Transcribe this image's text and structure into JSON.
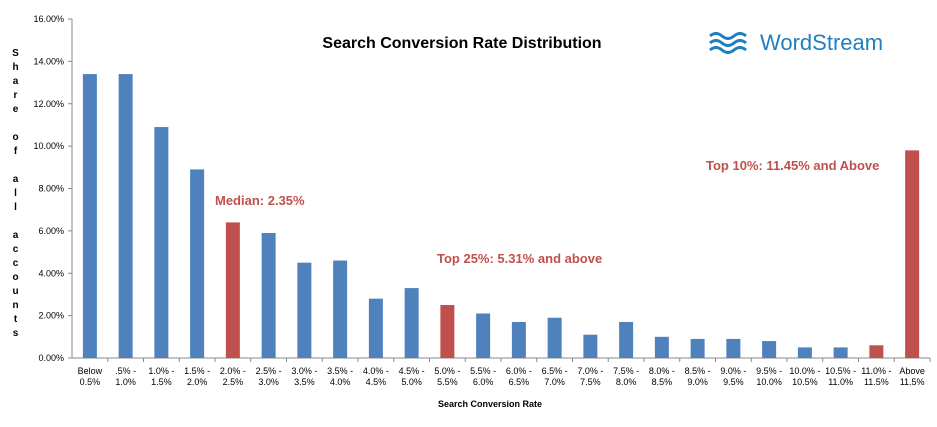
{
  "chart_data": {
    "type": "bar",
    "title": "Search Conversion Rate Distribution",
    "logo": "WordStream",
    "x_label": "Search Conversion Rate",
    "y_label": "Share of all accounts",
    "categories": [
      [
        "Below",
        "0.5%"
      ],
      [
        ".5% -",
        "1.0%"
      ],
      [
        "1.0% -",
        "1.5%"
      ],
      [
        "1.5% -",
        "2.0%"
      ],
      [
        "2.0% -",
        "2.5%"
      ],
      [
        "2.5% -",
        "3.0%"
      ],
      [
        "3.0% -",
        "3.5%"
      ],
      [
        "3.5% -",
        "4.0%"
      ],
      [
        "4.0% -",
        "4.5%"
      ],
      [
        "4.5% -",
        "5.0%"
      ],
      [
        "5.0% -",
        "5.5%"
      ],
      [
        "5.5% -",
        "6.0%"
      ],
      [
        "6.0% -",
        "6.5%"
      ],
      [
        "6.5% -",
        "7.0%"
      ],
      [
        "7.0% -",
        "7.5%"
      ],
      [
        "7.5% -",
        "8.0%"
      ],
      [
        "8.0% -",
        "8.5%"
      ],
      [
        "8.5% -",
        "9.0%"
      ],
      [
        "9.0% -",
        "9.5%"
      ],
      [
        "9.5% -",
        "10.0%"
      ],
      [
        "10.0% -",
        "10.5%"
      ],
      [
        "10.5% -",
        "11.0%"
      ],
      [
        "11.0% -",
        "11.5%"
      ],
      [
        "Above",
        "11.5%"
      ]
    ],
    "values": [
      13.4,
      13.4,
      10.9,
      8.9,
      6.4,
      5.9,
      4.5,
      4.6,
      2.8,
      3.3,
      2.5,
      2.1,
      1.7,
      1.9,
      1.1,
      1.7,
      1.0,
      0.9,
      0.9,
      0.8,
      0.5,
      0.5,
      0.6,
      9.8
    ],
    "colors": [
      "#4f81bd",
      "#4f81bd",
      "#4f81bd",
      "#4f81bd",
      "#c0504d",
      "#4f81bd",
      "#4f81bd",
      "#4f81bd",
      "#4f81bd",
      "#4f81bd",
      "#c0504d",
      "#4f81bd",
      "#4f81bd",
      "#4f81bd",
      "#4f81bd",
      "#4f81bd",
      "#4f81bd",
      "#4f81bd",
      "#4f81bd",
      "#4f81bd",
      "#4f81bd",
      "#4f81bd",
      "#c0504d",
      "#c0504d"
    ],
    "ylim": [
      0,
      16
    ],
    "yticks": [
      {
        "value": 0,
        "label": "0.00%"
      },
      {
        "value": 2,
        "label": "2.00%"
      },
      {
        "value": 4,
        "label": "4.00%"
      },
      {
        "value": 6,
        "label": "6.00%"
      },
      {
        "value": 8,
        "label": "8.00%"
      },
      {
        "value": 10,
        "label": "10.00%"
      },
      {
        "value": 12,
        "label": "12.00%"
      },
      {
        "value": 14,
        "label": "14.00%"
      },
      {
        "value": 16,
        "label": "16.00%"
      }
    ],
    "grid": false,
    "annotations": [
      "Median: 2.35%",
      "Top 25%: 5.31% and above",
      "Top 10%: 11.45% and Above"
    ]
  }
}
